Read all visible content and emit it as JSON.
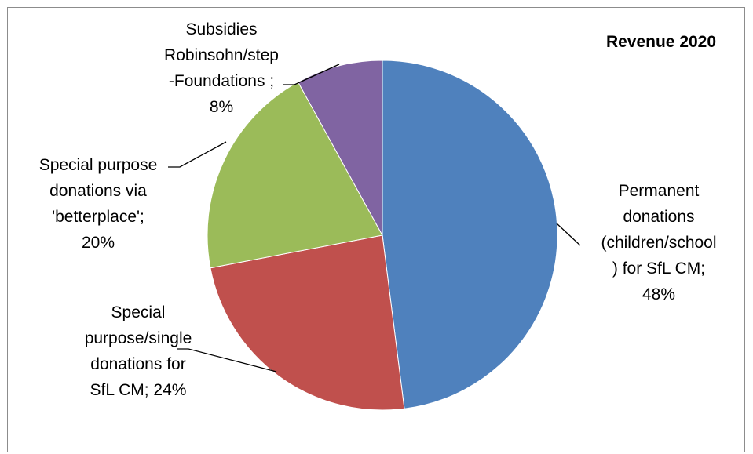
{
  "chart_data": {
    "type": "pie",
    "title": "Revenue 2020",
    "slices": [
      {
        "name": "Permanent donations (children/school) for SfL CM",
        "value": 48,
        "color": "#4F81BD",
        "label_lines": [
          "Permanent",
          "donations",
          "(children/school",
          ") for SfL CM;",
          "48%"
        ]
      },
      {
        "name": "Special purpose/single donations for SfL CM",
        "value": 24,
        "color": "#C0504D",
        "label_lines": [
          "Special",
          "purpose/single",
          "donations for",
          "SfL CM; 24%"
        ]
      },
      {
        "name": "Special purpose donations via 'betterplace'",
        "value": 20,
        "color": "#9BBB59",
        "label_lines": [
          "Special purpose",
          "donations via",
          "'betterplace';",
          "20%"
        ]
      },
      {
        "name": "Subsidies Robinsohn/step -Foundations",
        "value": 8,
        "color": "#8064A2",
        "label_lines": [
          "Subsidies",
          "Robinsohn/step",
          "-Foundations ;",
          "8%"
        ]
      }
    ],
    "legend": "none"
  }
}
